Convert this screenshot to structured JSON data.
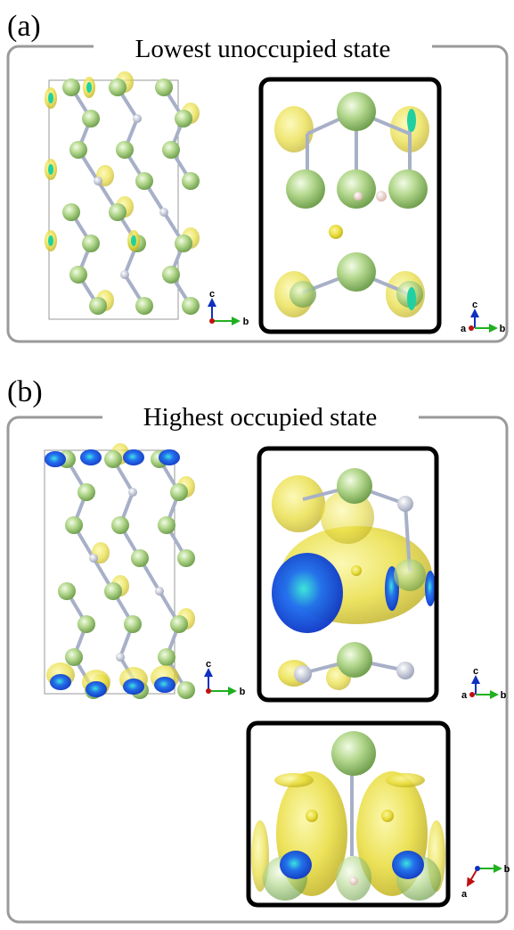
{
  "panels": [
    {
      "label": "(a)",
      "title": "Lowest unoccupied state",
      "axes": [
        [
          "c",
          "b"
        ],
        [
          "c",
          "a",
          "b"
        ]
      ]
    },
    {
      "label": "(b)",
      "title": "Highest occupied state",
      "axes": [
        [
          "c",
          "b"
        ],
        [
          "c",
          "a",
          "b"
        ],
        [
          "b",
          "a"
        ]
      ]
    }
  ]
}
